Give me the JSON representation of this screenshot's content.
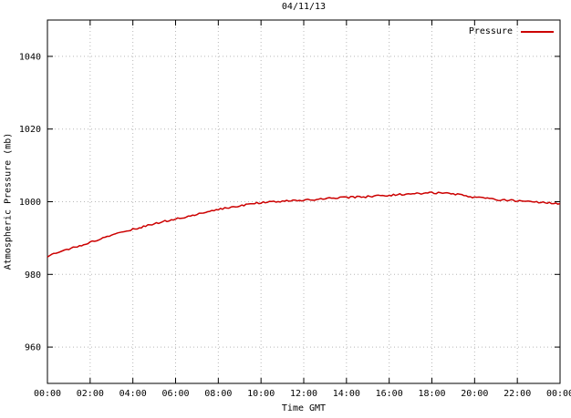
{
  "title": "04/11/13",
  "colors": {
    "line": "#cc0000",
    "grid": "#b8b8b8",
    "border": "#000000",
    "text": "#000000"
  },
  "chart_data": {
    "type": "line",
    "title": "04/11/13",
    "xlabel": "Time GMT",
    "ylabel": "Atmospheric Pressure (mb)",
    "xlim": [
      0,
      24
    ],
    "ylim": [
      950,
      1050
    ],
    "grid": true,
    "legend_position": "top-right-inside",
    "xticks": {
      "values": [
        0,
        2,
        4,
        6,
        8,
        10,
        12,
        14,
        16,
        18,
        20,
        22,
        24
      ],
      "labels": [
        "00:00",
        "02:00",
        "04:00",
        "06:00",
        "08:00",
        "10:00",
        "12:00",
        "14:00",
        "16:00",
        "18:00",
        "20:00",
        "22:00",
        "00:00"
      ]
    },
    "yticks": {
      "values": [
        960,
        980,
        1000,
        1020,
        1040
      ],
      "labels": [
        "960",
        "980",
        "1000",
        "1020",
        "1040"
      ]
    },
    "series": [
      {
        "name": "Pressure",
        "color": "#cc0000",
        "x": [
          0,
          0.5,
          1,
          1.5,
          2,
          2.5,
          3,
          3.5,
          4,
          4.5,
          5,
          5.5,
          6,
          6.5,
          7,
          7.5,
          8,
          8.5,
          9,
          9.5,
          10,
          10.5,
          11,
          11.5,
          12,
          12.5,
          13,
          13.5,
          14,
          14.5,
          15,
          15.5,
          16,
          16.5,
          17,
          17.5,
          18,
          18.5,
          19,
          19.5,
          20,
          20.5,
          21,
          21.5,
          22,
          22.5,
          23,
          23.5,
          24
        ],
        "values": [
          985.0,
          985.9,
          986.9,
          987.8,
          988.8,
          989.8,
          990.7,
          991.6,
          992.4,
          993.1,
          993.9,
          994.6,
          995.2,
          995.7,
          996.5,
          997.2,
          997.9,
          998.4,
          998.9,
          999.4,
          999.8,
          1000.0,
          1000.1,
          1000.3,
          1000.4,
          1000.6,
          1000.8,
          1001.0,
          1001.2,
          1001.3,
          1001.4,
          1001.6,
          1001.8,
          1002.0,
          1002.1,
          1002.3,
          1002.5,
          1002.4,
          1002.1,
          1001.7,
          1001.2,
          1000.9,
          1000.6,
          1000.4,
          1000.2,
          1000.0,
          999.9,
          999.7,
          999.5
        ]
      }
    ]
  }
}
